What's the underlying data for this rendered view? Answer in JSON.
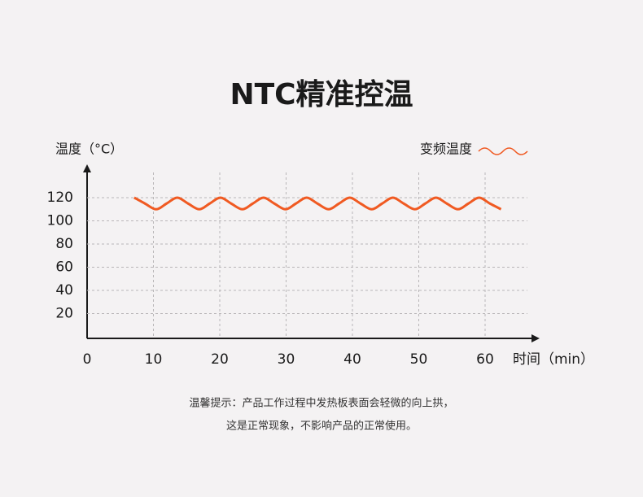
{
  "chart_data": {
    "type": "line",
    "title": "NTC精准控温",
    "y_label": "温度（°C）",
    "x_label": "时间（min）",
    "xlim": [
      0,
      67
    ],
    "ylim": [
      0,
      146
    ],
    "xticks": [
      0,
      10,
      20,
      30,
      40,
      50,
      60
    ],
    "yticks": [
      20,
      40,
      60,
      80,
      100,
      120
    ],
    "grid": true,
    "legend": "top-right",
    "x": [
      7.1,
      8.7,
      10.4,
      12.0,
      13.6,
      15.2,
      16.9,
      18.5,
      20.1,
      21.7,
      23.4,
      25.0,
      26.6,
      28.2,
      29.9,
      31.5,
      33.1,
      34.7,
      36.4,
      38.0,
      39.6,
      41.2,
      42.9,
      44.5,
      46.1,
      47.7,
      49.4,
      51.0,
      52.6,
      54.2,
      55.9,
      57.5,
      59.1,
      60.7,
      62.4
    ],
    "series": [
      {
        "name": "变频温度",
        "color": "#f05a22",
        "values": [
          120,
          115,
          110,
          115,
          120,
          115,
          110,
          115,
          120,
          115,
          110,
          115,
          120,
          115,
          110,
          115,
          120,
          115,
          110,
          115,
          120,
          115,
          110,
          115,
          120,
          115,
          110,
          115,
          120,
          115,
          110,
          115,
          120,
          115,
          110
        ]
      }
    ],
    "notes": [
      "温馨提示：产品工作过程中发热板表面会轻微的向上拱，",
      "这是正常现象，不影响产品的正常使用。"
    ]
  }
}
